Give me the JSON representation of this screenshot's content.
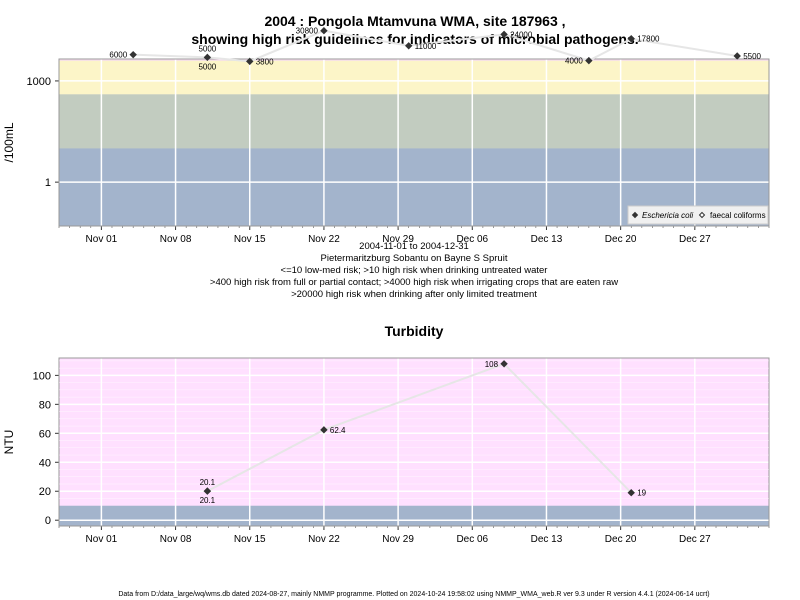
{
  "title_line1": "2004 : Pongola Mtamvuna WMA, site 187963 ,",
  "title_line2": "showing high risk guidelines for indicators of microbial pathogens.",
  "subtitle_lines": [
    "2004-11-01 to 2004-12-31",
    "Pietermaritzburg Sobantu on Bayne S Spruit",
    "<=10 low-med risk; >10 high risk when drinking untreated water",
    ">400 high risk from full or partial contact; >4000 high risk when irrigating crops that are eaten raw",
    ">20000 high risk when drinking after only limited treatment"
  ],
  "footer": "Data from D:/data_large/wq/wms.db dated 2024-08-27, mainly NMMP programme. Plotted on 2024-10-24 19:58:02 using NMMP_WMA_web.R ver 9.3 under R version 4.4.1 (2024-06-14 ucrt)",
  "colors": {
    "band_low": "#a3b4cc",
    "band_10": "#c2ccc0",
    "band_400": "#fcf5c8",
    "band_4000": "#ffe0f5",
    "band_20000": "#ffc8dc",
    "turb_band_low": "#a3b4cc",
    "turb_band_high": "#ffe0ff",
    "line": "#e6e6e6",
    "marker": "#333333",
    "grid": "#ffffff",
    "frame": "#999999"
  },
  "chart_data": [
    {
      "type": "scatter",
      "ylabel": "/100mL",
      "y_scale": "log",
      "ylim_log10": [
        -1.3,
        3.65
      ],
      "y_ticks": [
        {
          "value": 1,
          "label": "1"
        },
        {
          "value": 1000,
          "label": "1000"
        }
      ],
      "xlim": [
        "2004-10-28",
        "2005-01-03"
      ],
      "x_ticks": [
        {
          "date": "2004-11-01",
          "label": "Nov 01"
        },
        {
          "date": "2004-11-08",
          "label": "Nov 08"
        },
        {
          "date": "2004-11-15",
          "label": "Nov 15"
        },
        {
          "date": "2004-11-22",
          "label": "Nov 22"
        },
        {
          "date": "2004-11-29",
          "label": "Nov 29"
        },
        {
          "date": "2004-12-06",
          "label": "Dec 06"
        },
        {
          "date": "2004-12-13",
          "label": "Dec 13"
        },
        {
          "date": "2004-12-20",
          "label": "Dec 20"
        },
        {
          "date": "2004-12-27",
          "label": "Dec 27"
        }
      ],
      "bands": [
        {
          "from": 10,
          "to": 400
        },
        {
          "from": 400,
          "to": 4000
        },
        {
          "from": 4000,
          "to": 20000
        }
      ],
      "legend": {
        "position": "bottom-right",
        "entries": [
          "Eschericia coli",
          "faecal coliforms"
        ]
      },
      "series": [
        {
          "name": "Eschericia coli",
          "points": [
            {
              "date": "2004-11-04",
              "value": 6000,
              "label": "6000",
              "label_side": "left"
            },
            {
              "date": "2004-11-11",
              "value": 5000,
              "label": "5000",
              "label_side": "above"
            },
            {
              "date": "2004-11-15",
              "value": 3800,
              "label": "3800",
              "label_side": "right"
            },
            {
              "date": "2004-11-22",
              "value": 30800,
              "label": "30800",
              "label_side": "left"
            },
            {
              "date": "2004-11-30",
              "value": 11000,
              "label": "11000",
              "label_side": "right"
            },
            {
              "date": "2004-12-09",
              "value": 24000,
              "label": "24000",
              "label_side": "right"
            },
            {
              "date": "2004-12-17",
              "value": 4000,
              "label": "4000",
              "label_side": "left"
            },
            {
              "date": "2004-12-21",
              "value": 17800,
              "label": "17800",
              "label_side": "right"
            },
            {
              "date": "2004-12-31",
              "value": 5500,
              "label": "5500",
              "label_side": "right"
            }
          ]
        },
        {
          "name": "faecal coliforms",
          "points": [
            {
              "date": "2004-11-11",
              "value": 5000,
              "label": "5000",
              "label_side": "below"
            }
          ]
        }
      ]
    },
    {
      "type": "scatter",
      "title": "Turbidity",
      "ylabel": "NTU",
      "ylim": [
        -4,
        112
      ],
      "y_ticks": [
        {
          "value": 0,
          "label": "0"
        },
        {
          "value": 20,
          "label": "20"
        },
        {
          "value": 40,
          "label": "40"
        },
        {
          "value": 60,
          "label": "60"
        },
        {
          "value": 80,
          "label": "80"
        },
        {
          "value": 100,
          "label": "100"
        }
      ],
      "xlim": [
        "2004-10-28",
        "2005-01-03"
      ],
      "x_ticks": [
        {
          "date": "2004-11-01",
          "label": "Nov 01"
        },
        {
          "date": "2004-11-08",
          "label": "Nov 08"
        },
        {
          "date": "2004-11-15",
          "label": "Nov 15"
        },
        {
          "date": "2004-11-22",
          "label": "Nov 22"
        },
        {
          "date": "2004-11-29",
          "label": "Nov 29"
        },
        {
          "date": "2004-12-06",
          "label": "Dec 06"
        },
        {
          "date": "2004-12-13",
          "label": "Dec 13"
        },
        {
          "date": "2004-12-20",
          "label": "Dec 20"
        },
        {
          "date": "2004-12-27",
          "label": "Dec 27"
        }
      ],
      "bands": [
        {
          "from": 10,
          "to": 112
        }
      ],
      "points": [
        {
          "date": "2004-11-11",
          "value": 20.1,
          "label": "20.1",
          "label_side": "above"
        },
        {
          "date": "2004-11-11",
          "value": 20.1,
          "label": "20.1",
          "label_side": "below"
        },
        {
          "date": "2004-11-22",
          "value": 62.4,
          "label": "62.4",
          "label_side": "right"
        },
        {
          "date": "2004-12-09",
          "value": 108,
          "label": "108",
          "label_side": "left"
        },
        {
          "date": "2004-12-21",
          "value": 19,
          "label": "19",
          "label_side": "right"
        }
      ]
    }
  ]
}
